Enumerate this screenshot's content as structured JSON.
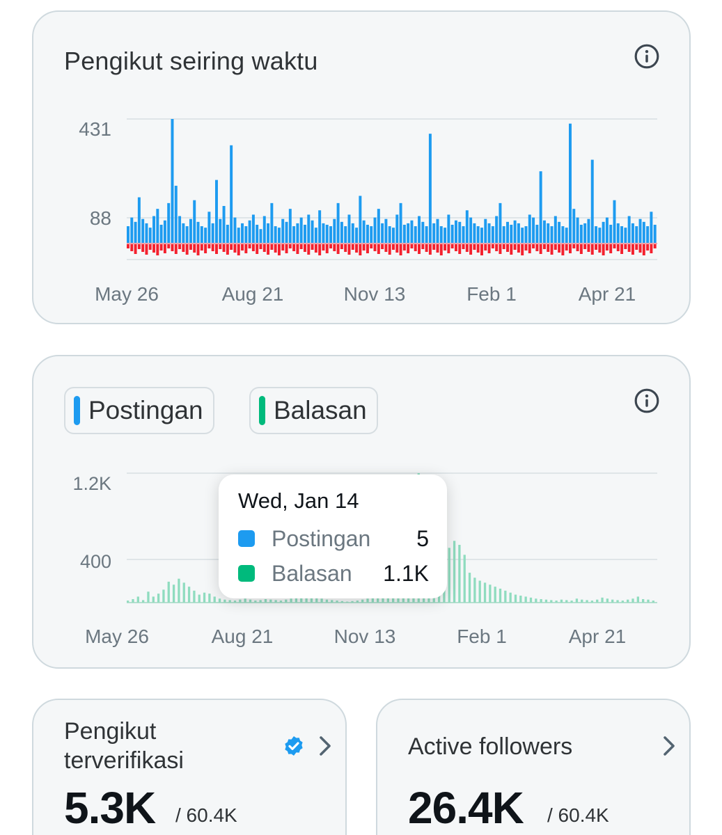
{
  "followers_card": {
    "title": "Pengikut seiring waktu",
    "info_icon": "info-circle-icon"
  },
  "posts_card": {
    "legend": [
      {
        "label": "Postingan",
        "color": "#1d9bf0"
      },
      {
        "label": "Balasan",
        "color": "#00ba7c"
      }
    ],
    "info_icon": "info-circle-icon",
    "tooltip": {
      "date": "Wed, Jan 14",
      "rows": [
        {
          "name": "Postingan",
          "value": "5",
          "color": "#1d9bf0"
        },
        {
          "name": "Balasan",
          "value": "1.1K",
          "color": "#00ba7c"
        }
      ]
    }
  },
  "verified_card": {
    "title": "Pengikut terverifikasi",
    "value": "5.3K",
    "total": "/ 60.4K",
    "badge_icon": "verified-badge-icon",
    "chevron_icon": "chevron-right-icon"
  },
  "active_card": {
    "title": "Active followers",
    "value": "26.4K",
    "total": "/ 60.4K",
    "chevron_icon": "chevron-right-icon"
  },
  "chart_data": [
    {
      "type": "bar",
      "title": "Pengikut seiring waktu",
      "x_tick_labels": [
        "May 26",
        "Aug 21",
        "Nov 13",
        "Feb 1",
        "Apr 21"
      ],
      "y_tick_labels": [
        "431",
        "88"
      ],
      "ylim": [
        -100,
        431
      ],
      "grid": true,
      "colors": {
        "gained": "#1d9bf0",
        "lost": "#f4212e"
      },
      "series": [
        {
          "values": [
            60,
            90,
            75,
            160,
            85,
            70,
            55,
            95,
            120,
            65,
            80,
            140,
            431,
            200,
            95,
            70,
            60,
            85,
            150,
            75,
            60,
            55,
            110,
            70,
            220,
            85,
            130,
            65,
            340,
            90,
            55,
            70,
            60,
            80,
            100,
            65,
            50,
            95,
            70,
            140,
            60,
            55,
            85,
            75,
            120,
            60,
            70,
            90,
            65,
            100,
            80,
            55,
            115,
            70,
            65,
            60,
            85,
            140,
            75,
            60,
            100,
            70,
            55,
            165,
            80,
            65,
            60,
            90,
            120,
            70,
            85,
            60,
            55,
            100,
            140,
            65,
            70,
            80,
            60,
            95,
            75,
            60,
            380,
            70,
            85,
            60,
            55,
            100,
            65,
            80,
            75,
            60,
            115,
            90,
            70,
            60,
            55,
            85,
            70,
            60,
            95,
            140,
            60,
            75,
            65,
            80,
            70,
            55,
            60,
            100,
            90,
            65,
            250,
            80,
            70,
            60,
            95,
            75,
            60,
            55,
            415,
            120,
            90,
            65,
            70,
            85,
            290,
            60,
            55,
            75,
            90,
            65,
            150,
            70,
            60,
            55,
            95,
            70,
            60,
            85,
            75,
            60,
            110,
            65
          ]
        }
      ]
    },
    {
      "type": "bar",
      "x_tick_labels": [
        "May 26",
        "Aug 21",
        "Nov 13",
        "Feb 1",
        "Apr 21"
      ],
      "y_tick_labels": [
        "1.2K",
        "400"
      ],
      "ylim": [
        0,
        1300
      ],
      "grid": true,
      "series": [
        {
          "name": "Postingan",
          "color": "#1d9bf0",
          "values": [
            5
          ]
        },
        {
          "name": "Balasan",
          "color": "#00ba7c",
          "values": [
            20,
            35,
            60,
            25,
            110,
            60,
            90,
            130,
            210,
            180,
            240,
            200,
            160,
            120,
            80,
            100,
            90,
            60,
            40,
            30,
            25,
            20,
            30,
            40,
            30,
            20,
            25,
            35,
            30,
            25,
            20,
            30,
            40,
            60,
            80,
            70,
            60,
            50,
            40,
            30,
            25,
            20,
            15,
            10,
            15,
            20,
            30,
            40,
            60,
            80,
            120,
            180,
            250,
            400,
            600,
            700,
            760,
            1300,
            900,
            600,
            300,
            250,
            400,
            550,
            620,
            580,
            480,
            300,
            250,
            220,
            200,
            180,
            160,
            140,
            120,
            100,
            80,
            70,
            60,
            50,
            40,
            35,
            30,
            25,
            20,
            30,
            25,
            20,
            40,
            30,
            25,
            20,
            30,
            50,
            40,
            30,
            25,
            20,
            30,
            40,
            60,
            35,
            30,
            20
          ]
        }
      ]
    }
  ]
}
